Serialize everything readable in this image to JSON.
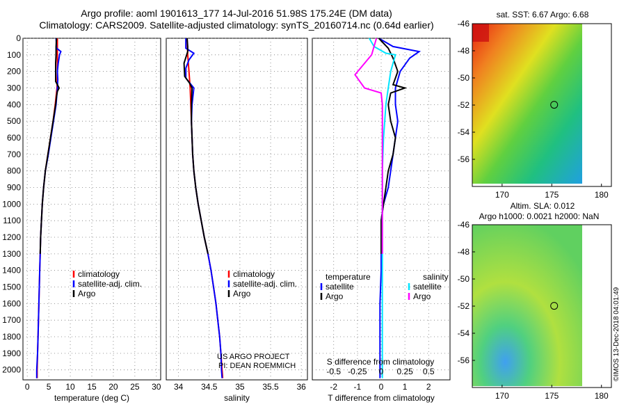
{
  "title_line1": "Argo profile: aoml 1901613_177 14-Jul-2016 51.98S 175.24E (DM data)",
  "title_line2": "Climatology: CARS2009. Satellite-adjusted climatology: synTS_20160714.nc (0.64d earlier)",
  "footer": {
    "project": "US ARGO PROJECT",
    "pi": "PI: DEAN ROEMMICH",
    "credit": "©IMOS 13-Dec-2018 04:01:49"
  },
  "colors": {
    "climatology": "#ff0000",
    "satellite": "#0000ff",
    "argo": "#000000",
    "sat_salinity": "#00e5ff",
    "argo_salinity": "#ff00ff"
  },
  "chart_data": [
    {
      "type": "line",
      "id": "temperature",
      "xlabel": "temperature (deg C)",
      "xlim": [
        -1,
        31
      ],
      "xticks": [
        0,
        5,
        10,
        15,
        20,
        25,
        30
      ],
      "ylim": [
        2060,
        0
      ],
      "yticks": [
        0,
        100,
        200,
        300,
        400,
        500,
        600,
        700,
        800,
        900,
        1000,
        1100,
        1200,
        1300,
        1400,
        1500,
        1600,
        1700,
        1800,
        1900,
        2000
      ],
      "grid": true,
      "legend": [
        "climatology",
        "satellite-adj. clim.",
        "Argo"
      ],
      "series": [
        {
          "name": "climatology",
          "color": "#ff0000",
          "points": [
            [
              7.0,
              0
            ],
            [
              7.0,
              100
            ],
            [
              7.0,
              200
            ],
            [
              6.9,
              300
            ],
            [
              6.5,
              400
            ],
            [
              6.0,
              500
            ],
            [
              5.4,
              600
            ],
            [
              4.8,
              700
            ],
            [
              4.2,
              800
            ],
            [
              3.8,
              900
            ],
            [
              3.5,
              1000
            ],
            [
              3.3,
              1100
            ],
            [
              3.1,
              1200
            ],
            [
              3.0,
              1300
            ],
            [
              2.9,
              1400
            ],
            [
              2.8,
              1500
            ],
            [
              2.7,
              1600
            ],
            [
              2.6,
              1700
            ],
            [
              2.5,
              1800
            ],
            [
              2.4,
              1900
            ],
            [
              2.3,
              2000
            ],
            [
              2.3,
              2050
            ]
          ]
        },
        {
          "name": "satellite-adj. clim.",
          "color": "#0000ff",
          "points": [
            [
              6.7,
              0
            ],
            [
              6.8,
              60
            ],
            [
              7.8,
              80
            ],
            [
              7.5,
              100
            ],
            [
              7.2,
              150
            ],
            [
              7.0,
              200
            ],
            [
              7.1,
              250
            ],
            [
              7.0,
              300
            ],
            [
              6.7,
              400
            ],
            [
              6.1,
              500
            ],
            [
              5.5,
              600
            ],
            [
              4.9,
              700
            ],
            [
              4.2,
              800
            ],
            [
              3.8,
              900
            ],
            [
              3.5,
              1000
            ],
            [
              3.3,
              1100
            ],
            [
              3.1,
              1200
            ],
            [
              3.0,
              1300
            ],
            [
              2.9,
              1400
            ],
            [
              2.8,
              1500
            ],
            [
              2.7,
              1600
            ],
            [
              2.6,
              1700
            ],
            [
              2.5,
              1800
            ],
            [
              2.4,
              1900
            ],
            [
              2.2,
              2000
            ],
            [
              2.2,
              2050
            ]
          ]
        },
        {
          "name": "Argo",
          "color": "#000000",
          "points": [
            [
              6.8,
              0
            ],
            [
              6.7,
              50
            ],
            [
              6.7,
              100
            ],
            [
              6.6,
              150
            ],
            [
              6.6,
              200
            ],
            [
              6.6,
              260
            ],
            [
              7.4,
              300
            ],
            [
              7.0,
              320
            ],
            [
              6.8,
              350
            ],
            [
              6.6,
              400
            ],
            [
              6.0,
              500
            ],
            [
              5.4,
              600
            ],
            [
              4.8,
              700
            ],
            [
              4.2,
              800
            ],
            [
              3.8,
              900
            ],
            [
              3.5,
              1000
            ],
            [
              3.3,
              1100
            ],
            [
              3.1,
              1200
            ],
            [
              3.0,
              1300
            ]
          ]
        }
      ]
    },
    {
      "type": "line",
      "id": "salinity",
      "xlabel": "salinity",
      "xlim": [
        33.8,
        36.1
      ],
      "xticks": [
        34,
        34.5,
        35,
        35.5,
        36
      ],
      "ylim": [
        2060,
        0
      ],
      "grid": true,
      "legend": [
        "climatology",
        "satellite-adj. clim.",
        "Argo"
      ],
      "series": [
        {
          "name": "climatology",
          "color": "#ff0000",
          "points": [
            [
              34.14,
              0
            ],
            [
              34.15,
              100
            ],
            [
              34.17,
              200
            ],
            [
              34.19,
              300
            ],
            [
              34.2,
              400
            ],
            [
              34.21,
              500
            ],
            [
              34.22,
              600
            ],
            [
              34.23,
              700
            ],
            [
              34.25,
              800
            ],
            [
              34.28,
              900
            ],
            [
              34.32,
              1000
            ],
            [
              34.37,
              1100
            ],
            [
              34.42,
              1200
            ],
            [
              34.48,
              1300
            ],
            [
              34.53,
              1400
            ],
            [
              34.57,
              1500
            ],
            [
              34.61,
              1600
            ],
            [
              34.64,
              1700
            ],
            [
              34.67,
              1800
            ],
            [
              34.69,
              1900
            ],
            [
              34.71,
              2000
            ],
            [
              34.72,
              2050
            ]
          ]
        },
        {
          "name": "satellite-adj. clim.",
          "color": "#0000ff",
          "points": [
            [
              34.12,
              0
            ],
            [
              34.12,
              60
            ],
            [
              34.25,
              90
            ],
            [
              34.17,
              130
            ],
            [
              34.12,
              180
            ],
            [
              34.12,
              240
            ],
            [
              34.25,
              300
            ],
            [
              34.22,
              400
            ],
            [
              34.21,
              500
            ],
            [
              34.22,
              600
            ],
            [
              34.23,
              700
            ],
            [
              34.25,
              800
            ],
            [
              34.28,
              900
            ],
            [
              34.32,
              1000
            ],
            [
              34.37,
              1100
            ],
            [
              34.42,
              1200
            ],
            [
              34.48,
              1300
            ],
            [
              34.53,
              1400
            ],
            [
              34.57,
              1500
            ],
            [
              34.61,
              1600
            ],
            [
              34.64,
              1700
            ],
            [
              34.67,
              1800
            ],
            [
              34.69,
              1900
            ],
            [
              34.7,
              2000
            ],
            [
              34.71,
              2050
            ]
          ]
        },
        {
          "name": "Argo",
          "color": "#000000",
          "points": [
            [
              34.14,
              0
            ],
            [
              34.15,
              50
            ],
            [
              34.15,
              80
            ],
            [
              34.09,
              150
            ],
            [
              34.1,
              230
            ],
            [
              34.18,
              270
            ],
            [
              34.22,
              300
            ],
            [
              34.21,
              400
            ],
            [
              34.21,
              500
            ],
            [
              34.22,
              600
            ],
            [
              34.23,
              700
            ],
            [
              34.25,
              800
            ],
            [
              34.28,
              900
            ],
            [
              34.32,
              1000
            ],
            [
              34.37,
              1100
            ],
            [
              34.42,
              1200
            ],
            [
              34.48,
              1300
            ]
          ]
        }
      ]
    },
    {
      "type": "line",
      "id": "difference",
      "xlabel": "T difference from climatology",
      "xlabel2": "S difference from climatology",
      "xlim": [
        -2.9,
        2.9
      ],
      "xticks": [
        -2,
        -1,
        0,
        1,
        2
      ],
      "xticks2": [
        "-0.5",
        "-0.25",
        "0",
        "0.25",
        "0.5"
      ],
      "ylim": [
        2060,
        0
      ],
      "grid": true,
      "legend_left_title": "temperature",
      "legend_right_title": "salinity",
      "legend": [
        "satellite",
        "Argo",
        "satellite",
        "Argo"
      ],
      "series": [
        {
          "name": "temperature satellite",
          "color": "#0000ff",
          "points": [
            [
              -0.1,
              0
            ],
            [
              0.5,
              50
            ],
            [
              1.6,
              80
            ],
            [
              1.2,
              120
            ],
            [
              0.8,
              200
            ],
            [
              0.6,
              300
            ],
            [
              0.6,
              400
            ],
            [
              0.7,
              500
            ],
            [
              0.6,
              600
            ],
            [
              0.5,
              700
            ],
            [
              0.4,
              800
            ],
            [
              0.3,
              900
            ],
            [
              0.1,
              1000
            ],
            [
              0.0,
              1100
            ],
            [
              0.0,
              1200
            ],
            [
              0.0,
              1400
            ],
            [
              -0.05,
              1600
            ],
            [
              -0.05,
              1800
            ],
            [
              -0.05,
              2050
            ]
          ]
        },
        {
          "name": "temperature Argo",
          "color": "#000000",
          "points": [
            [
              -0.1,
              0
            ],
            [
              0.3,
              60
            ],
            [
              0.5,
              120
            ],
            [
              0.7,
              200
            ],
            [
              0.5,
              280
            ],
            [
              1.0,
              300
            ],
            [
              0.4,
              330
            ],
            [
              0.3,
              400
            ],
            [
              0.4,
              500
            ],
            [
              0.6,
              600
            ],
            [
              0.5,
              700
            ],
            [
              0.3,
              800
            ],
            [
              0.2,
              900
            ],
            [
              0.1,
              1000
            ],
            [
              0.0,
              1100
            ],
            [
              0.0,
              1200
            ],
            [
              0.0,
              1300
            ]
          ]
        },
        {
          "name": "salinity satellite",
          "color": "#00e5ff",
          "points": [
            [
              -0.5,
              0
            ],
            [
              -0.3,
              50
            ],
            [
              0.2,
              90
            ],
            [
              0.6,
              100
            ],
            [
              0.4,
              200
            ],
            [
              0.3,
              300
            ],
            [
              0.2,
              400
            ],
            [
              0.1,
              600
            ],
            [
              0.05,
              800
            ],
            [
              0.05,
              1000
            ],
            [
              0.05,
              1200
            ],
            [
              0.05,
              1500
            ],
            [
              0.05,
              1800
            ],
            [
              0.05,
              2050
            ]
          ]
        },
        {
          "name": "salinity Argo",
          "color": "#ff00ff",
          "points": [
            [
              -0.2,
              0
            ],
            [
              -0.4,
              100
            ],
            [
              -1.1,
              220
            ],
            [
              -0.7,
              300
            ],
            [
              0.0,
              330
            ],
            [
              0.05,
              400
            ],
            [
              0.05,
              600
            ],
            [
              0.05,
              800
            ],
            [
              0.05,
              1000
            ],
            [
              0.05,
              1200
            ],
            [
              0.05,
              1300
            ]
          ]
        }
      ]
    },
    {
      "type": "heatmap",
      "id": "sst_map",
      "title": "sat. SST: 6.67 Argo: 6.68",
      "xlim": [
        167,
        181
      ],
      "ylim": [
        -58,
        -46
      ],
      "xticks": [
        170,
        175,
        180
      ],
      "yticks": [
        -46,
        -48,
        -50,
        -52,
        -54,
        -56
      ],
      "marker": [
        175.24,
        -51.98
      ]
    },
    {
      "type": "heatmap",
      "id": "sla_map",
      "title": "Altim. SLA: 0.012",
      "subtitle": "Argo h1000: 0.0021 h2000: NaN",
      "xlim": [
        167,
        181
      ],
      "ylim": [
        -58,
        -46
      ],
      "xticks": [
        170,
        175,
        180
      ],
      "yticks": [
        -46,
        -48,
        -50,
        -52,
        -54,
        -56
      ],
      "marker": [
        175.24,
        -51.98
      ]
    }
  ]
}
